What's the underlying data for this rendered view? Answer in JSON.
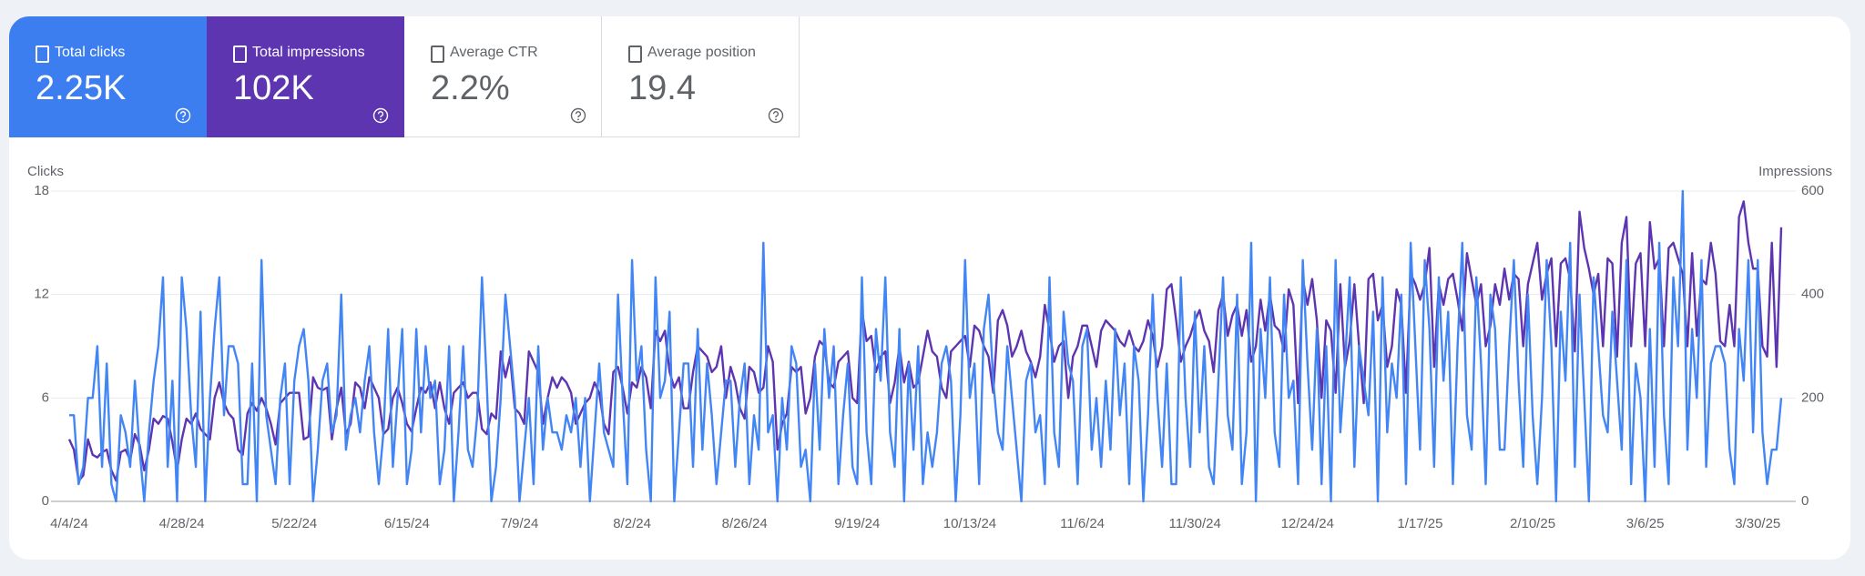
{
  "metrics": [
    {
      "label": "Total clicks",
      "value": "2.25K"
    },
    {
      "label": "Total impressions",
      "value": "102K"
    },
    {
      "label": "Average CTR",
      "value": "2.2%"
    },
    {
      "label": "Average position",
      "value": "19.4"
    }
  ],
  "chart_data": {
    "type": "line",
    "y_label": "Clicks",
    "y2_label": "Impressions",
    "ylim": [
      0,
      18
    ],
    "yticks": [
      0,
      6,
      12,
      18
    ],
    "y2lim": [
      0,
      600
    ],
    "y2ticks": [
      0,
      200,
      400,
      600
    ],
    "grid": true,
    "categories": [
      "4/4/24",
      null,
      null,
      null,
      null,
      null,
      null,
      null,
      null,
      null,
      null,
      null,
      null,
      null,
      null,
      null,
      null,
      null,
      null,
      null,
      null,
      null,
      null,
      null,
      "4/28/24",
      null,
      null,
      null,
      null,
      null,
      null,
      null,
      null,
      null,
      null,
      null,
      null,
      null,
      null,
      null,
      null,
      null,
      null,
      null,
      null,
      null,
      null,
      null,
      "5/22/24",
      null,
      null,
      null,
      null,
      null,
      null,
      null,
      null,
      null,
      null,
      null,
      null,
      null,
      null,
      null,
      null,
      null,
      null,
      null,
      null,
      null,
      null,
      null,
      "6/15/24",
      null,
      null,
      null,
      null,
      null,
      null,
      null,
      null,
      null,
      null,
      null,
      null,
      null,
      null,
      null,
      null,
      null,
      null,
      null,
      null,
      null,
      null,
      null,
      "7/9/24",
      null,
      null,
      null,
      null,
      null,
      null,
      null,
      null,
      null,
      null,
      null,
      null,
      null,
      null,
      null,
      null,
      null,
      null,
      null,
      null,
      null,
      null,
      null,
      "8/2/24",
      null,
      null,
      null,
      null,
      null,
      null,
      null,
      null,
      null,
      null,
      null,
      null,
      null,
      null,
      null,
      null,
      null,
      null,
      null,
      null,
      null,
      null,
      null,
      "8/26/24",
      null,
      null,
      null,
      null,
      null,
      null,
      null,
      null,
      null,
      null,
      null,
      null,
      null,
      null,
      null,
      null,
      null,
      null,
      null,
      null,
      null,
      null,
      null,
      "9/19/24",
      null,
      null,
      null,
      null,
      null,
      null,
      null,
      null,
      null,
      null,
      null,
      null,
      null,
      null,
      null,
      null,
      null,
      null,
      null,
      null,
      null,
      null,
      null,
      "10/13/24",
      null,
      null,
      null,
      null,
      null,
      null,
      null,
      null,
      null,
      null,
      null,
      null,
      null,
      null,
      null,
      null,
      null,
      null,
      null,
      null,
      null,
      null,
      null,
      "11/6/24",
      null,
      null,
      null,
      null,
      null,
      null,
      null,
      null,
      null,
      null,
      null,
      null,
      null,
      null,
      null,
      null,
      null,
      null,
      null,
      null,
      null,
      null,
      null,
      "11/30/24",
      null,
      null,
      null,
      null,
      null,
      null,
      null,
      null,
      null,
      null,
      null,
      null,
      null,
      null,
      null,
      null,
      null,
      null,
      null,
      null,
      null,
      null,
      null,
      "12/24/24",
      null,
      null,
      null,
      null,
      null,
      null,
      null,
      null,
      null,
      null,
      null,
      null,
      null,
      null,
      null,
      null,
      null,
      null,
      null,
      null,
      null,
      null,
      null,
      "1/17/25",
      null,
      null,
      null,
      null,
      null,
      null,
      null,
      null,
      null,
      null,
      null,
      null,
      null,
      null,
      null,
      null,
      null,
      null,
      null,
      null,
      null,
      null,
      null,
      "2/10/25",
      null,
      null,
      null,
      null,
      null,
      null,
      null,
      null,
      null,
      null,
      null,
      null,
      null,
      null,
      null,
      null,
      null,
      null,
      null,
      null,
      null,
      null,
      null,
      "3/6/25",
      null,
      null,
      null,
      null,
      null,
      null,
      null,
      null,
      null,
      null,
      null,
      null,
      null,
      null,
      null,
      null,
      null,
      null,
      null,
      null,
      null,
      null,
      null,
      "3/30/25",
      null,
      null,
      null,
      null,
      null
    ],
    "series": [
      {
        "color": "#5e35b1",
        "axis": "y2",
        "values": [
          120,
          100,
          40,
          50,
          120,
          90,
          85,
          95,
          100,
          60,
          40,
          95,
          100,
          80,
          130,
          110,
          60,
          100,
          160,
          150,
          165,
          160,
          115,
          60,
          120,
          160,
          150,
          170,
          140,
          130,
          120,
          200,
          230,
          190,
          170,
          160,
          100,
          90,
          170,
          190,
          175,
          200,
          180,
          150,
          110,
          190,
          200,
          210,
          210,
          210,
          120,
          125,
          240,
          220,
          215,
          220,
          120,
          180,
          220,
          130,
          150,
          230,
          220,
          180,
          240,
          220,
          200,
          130,
          140,
          200,
          220,
          190,
          150,
          135,
          180,
          220,
          210,
          230,
          180,
          230,
          180,
          150,
          210,
          220,
          230,
          200,
          210,
          210,
          140,
          130,
          170,
          160,
          290,
          240,
          280,
          180,
          170,
          150,
          290,
          270,
          250,
          150,
          200,
          240,
          220,
          240,
          230,
          210,
          150,
          170,
          190,
          200,
          230,
          210,
          150,
          130,
          250,
          260,
          220,
          170,
          230,
          220,
          260,
          240,
          180,
          330,
          310,
          330,
          250,
          220,
          240,
          180,
          180,
          250,
          300,
          290,
          280,
          250,
          260,
          300,
          200,
          260,
          230,
          180,
          160,
          260,
          250,
          210,
          220,
          300,
          270,
          100,
          150,
          170,
          260,
          250,
          260,
          170,
          200,
          280,
          310,
          300,
          230,
          220,
          270,
          280,
          290,
          200,
          190,
          370,
          310,
          320,
          250,
          280,
          290,
          190,
          230,
          300,
          230,
          270,
          220,
          230,
          280,
          330,
          290,
          280,
          220,
          200,
          290,
          300,
          310,
          320,
          260,
          340,
          330,
          300,
          280,
          210,
          350,
          370,
          340,
          280,
          300,
          330,
          290,
          270,
          240,
          280,
          380,
          330,
          270,
          300,
          310,
          200,
          280,
          300,
          340,
          340,
          300,
          260,
          330,
          350,
          340,
          330,
          310,
          300,
          330,
          300,
          290,
          310,
          350,
          320,
          260,
          300,
          410,
          420,
          350,
          270,
          300,
          320,
          350,
          370,
          330,
          310,
          250,
          370,
          400,
          320,
          360,
          380,
          320,
          370,
          270,
          300,
          390,
          330,
          400,
          340,
          330,
          290,
          410,
          380,
          190,
          430,
          380,
          430,
          350,
          200,
          350,
          330,
          210,
          420,
          260,
          310,
          420,
          300,
          190,
          430,
          440,
          350,
          380,
          260,
          300,
          410,
          380,
          210,
          440,
          420,
          390,
          420,
          490,
          260,
          420,
          380,
          430,
          440,
          390,
          330,
          480,
          430,
          380,
          420,
          300,
          340,
          420,
          380,
          450,
          390,
          440,
          430,
          300,
          420,
          460,
          500,
          390,
          440,
          470,
          300,
          460,
          470,
          430,
          290,
          560,
          490,
          450,
          400,
          440,
          300,
          470,
          460,
          280,
          500,
          550,
          300,
          460,
          480,
          300,
          540,
          450,
          470,
          300,
          490,
          500,
          470,
          440,
          300,
          480,
          320,
          430,
          420,
          500,
          440,
          310,
          300,
          380,
          300,
          550,
          580,
          500,
          450,
          450,
          300,
          280,
          500,
          260,
          530
        ]
      },
      {
        "color": "#4285f4",
        "values": [
          5,
          5,
          1,
          2,
          6,
          6,
          9,
          2,
          8,
          1,
          0,
          5,
          4,
          2,
          7,
          3,
          0,
          4,
          7,
          9,
          13,
          2,
          7,
          0,
          13,
          10,
          5,
          2,
          11,
          0,
          6,
          10,
          13,
          5,
          9,
          9,
          8,
          1,
          1,
          8,
          0,
          14,
          5,
          3,
          1,
          6,
          8,
          1,
          7,
          9,
          10,
          7,
          0,
          3,
          7,
          8,
          4,
          5,
          12,
          3,
          5,
          6,
          4,
          7,
          9,
          4,
          1,
          4,
          10,
          2,
          6,
          10,
          1,
          3,
          10,
          4,
          9,
          6,
          7,
          1,
          3,
          9,
          0,
          4,
          9,
          3,
          2,
          5,
          13,
          7,
          0,
          2,
          6,
          12,
          9,
          6,
          0,
          3,
          6,
          1,
          9,
          3,
          6,
          4,
          4,
          3,
          5,
          4,
          6,
          2,
          6,
          0,
          4,
          8,
          4,
          3,
          2,
          12,
          6,
          1,
          14,
          7,
          9,
          3,
          0,
          13,
          6,
          7,
          11,
          0,
          4,
          8,
          8,
          2,
          10,
          3,
          8,
          5,
          1,
          4,
          7,
          7,
          2,
          6,
          8,
          1,
          5,
          3,
          15,
          4,
          5,
          0,
          6,
          3,
          9,
          8,
          2,
          3,
          0,
          8,
          3,
          10,
          6,
          9,
          1,
          5,
          8,
          2,
          1,
          13,
          4,
          1,
          10,
          7,
          13,
          4,
          2,
          10,
          0,
          8,
          3,
          9,
          1,
          4,
          2,
          4,
          8,
          9,
          7,
          0,
          5,
          14,
          6,
          8,
          1,
          10,
          12,
          7,
          4,
          3,
          9,
          6,
          3,
          0,
          7,
          8,
          4,
          5,
          1,
          13,
          4,
          2,
          11,
          8,
          7,
          1,
          9,
          10,
          3,
          6,
          2,
          7,
          3,
          10,
          5,
          8,
          1,
          9,
          7,
          0,
          5,
          12,
          6,
          2,
          8,
          1,
          1,
          13,
          6,
          2,
          11,
          4,
          9,
          2,
          1,
          7,
          13,
          5,
          3,
          12,
          1,
          4,
          15,
          0,
          10,
          6,
          13,
          4,
          2,
          12,
          6,
          7,
          1,
          14,
          8,
          3,
          10,
          1,
          9,
          0,
          14,
          4,
          8,
          13,
          2,
          9,
          7,
          5,
          11,
          0,
          13,
          4,
          8,
          6,
          12,
          1,
          15,
          9,
          3,
          14,
          10,
          2,
          13,
          7,
          11,
          1,
          9,
          15,
          5,
          3,
          13,
          8,
          1,
          12,
          10,
          3,
          3,
          9,
          14,
          7,
          2,
          12,
          5,
          1,
          6,
          14,
          9,
          0,
          11,
          7,
          15,
          2,
          12,
          6,
          0,
          13,
          9,
          5,
          4,
          11,
          7,
          3,
          14,
          1,
          8,
          6,
          0,
          10,
          2,
          15,
          5,
          1,
          13,
          9,
          18,
          3,
          10,
          6,
          14,
          2,
          8,
          9,
          9,
          8,
          3,
          1,
          10,
          7,
          14,
          4,
          14,
          4,
          1,
          3,
          3,
          6
        ]
      }
    ]
  }
}
